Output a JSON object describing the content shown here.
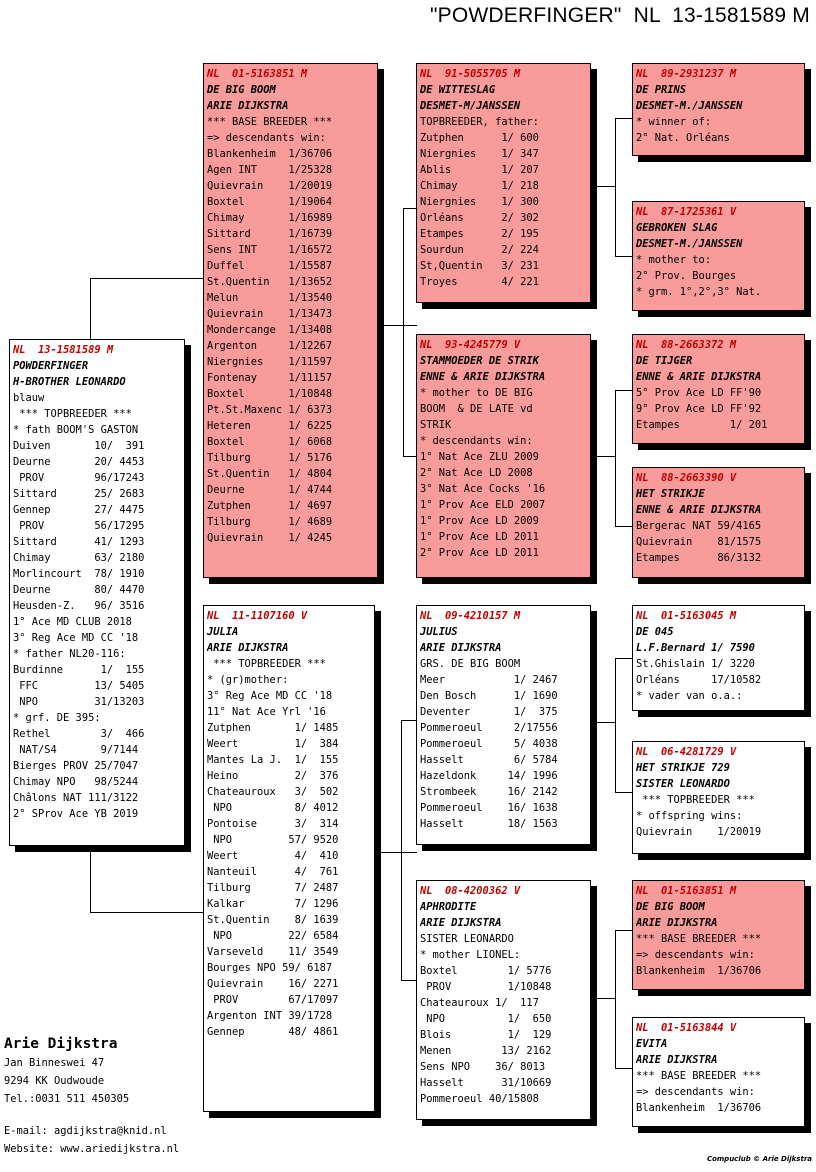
{
  "title": "\"POWDERFINGER\"  NL  13-1581589 M",
  "boxes": {
    "main": [
      "NL  13-1581589 M",
      "POWDERFINGER",
      "H-BROTHER LEONARDO",
      "blauw",
      " *** TOPBREEDER ***",
      "* fath BOOM'S GASTON",
      "Duiven       10/  391",
      "Deurne       20/ 4453",
      " PROV        96/17243",
      "Sittard      25/ 2683",
      "Gennep       27/ 4475",
      " PROV        56/17295",
      "Sittard      41/ 1293",
      "Chimay       63/ 2180",
      "Morlincourt  78/ 1910",
      "Deurne       80/ 4470",
      "Heusden-Z.   96/ 3516",
      "1° Ace MD CLUB 2018",
      "3° Reg Ace MD CC '18",
      "* father NL20-116:",
      "Burdinne      1/  155",
      " FFC         13/ 5405",
      " NPO         31/13203",
      "* grf. DE 395:",
      "Rethel        3/  466",
      " NAT/S4       9/7144",
      "Bierges PROV 25/7047",
      "Chimay NPO   98/5244",
      "Châlons NAT 111/3122",
      "2° SProv Ace YB 2019"
    ],
    "f": [
      "NL  01-5163851 M",
      "DE BIG BOOM",
      "ARIE DIJKSTRA",
      "*** BASE BREEDER ***",
      "=> descendants win:",
      "Blankenheim  1/36706",
      "Agen INT     1/25328",
      "Quievrain    1/20019",
      "Boxtel       1/19064",
      "Chimay       1/16989",
      "Sittard      1/16739",
      "Sens INT     1/16572",
      "Duffel       1/15587",
      "St.Quentin   1/13652",
      "Melun        1/13540",
      "Quievrain    1/13473",
      "Mondercange  1/13408",
      "Argenton     1/12267",
      "Niergnies    1/11597",
      "Fontenay     1/11157",
      "Boxtel       1/10848",
      "Pt.St.Maxenc 1/ 6373",
      "Heteren      1/ 6225",
      "Boxtel       1/ 6068",
      "Tilburg      1/ 5176",
      "St.Quentin   1/ 4804",
      "Deurne       1/ 4744",
      "Zutphen      1/ 4697",
      "Tilburg      1/ 4689",
      "Quievrain    1/ 4245"
    ],
    "m": [
      "NL  11-1107160 V",
      "JULIA",
      "ARIE DIJKSTRA",
      " *** TOPBREEDER ***",
      "* (gr)mother:",
      "3° Reg Ace MD CC '18",
      "11° Nat Ace Yrl '16",
      "Zutphen       1/ 1485",
      "Weert         1/  384",
      "Mantes La J.  1/  155",
      "Heino         2/  376",
      "Chateauroux   3/  502",
      " NPO          8/ 4012",
      "Pontoise      3/  314",
      " NPO         57/ 9520",
      "Weert         4/  410",
      "Nanteuil      4/  761",
      "Tilburg       7/ 2487",
      "Kalkar        7/ 1296",
      "St.Quentin    8/ 1639",
      " NPO         22/ 6584",
      "Varseveld    11/ 3549",
      "Bourges NPO 59/ 6187",
      "Quievrain    16/ 2271",
      " PROV        67/17097",
      "Argenton INT 39/1728",
      "Gennep       48/ 4861"
    ],
    "ff": [
      "NL  91-5055705 M",
      "DE WITTESLAG",
      "DESMET-M/JANSSEN",
      "TOPBREEDER, father:",
      "Zutphen      1/ 600",
      "Niergnies    1/ 347",
      "Ablis        1/ 207",
      "Chimay       1/ 218",
      "Niergnies    1/ 300",
      "Orléans      2/ 302",
      "Etampes      2/ 195",
      "Sourdun      2/ 224",
      "St,Quentin   3/ 231",
      "Troyes       4/ 221"
    ],
    "fm": [
      "NL  93-4245779 V",
      "STAMMOEDER DE STRIK",
      "ENNE & ARIE DIJKSTRA",
      "* mother to DE BIG",
      "BOOM  & DE LATE vd",
      "STRIK",
      "* descendants win:",
      "1° Nat Ace ZLU 2009",
      "2° Nat Ace LD 2008",
      "3° Nat Ace Cocks '16",
      "1° Prov Ace ELD 2007",
      "1° Prov Ace LD 2009",
      "1° Prov Ace LD 2011",
      "2° Prov Ace LD 2011"
    ],
    "mf": [
      "NL  09-4210157 M",
      "JULIUS",
      "ARIE DIJKSTRA",
      "GRS. DE BIG BOOM",
      "Meer           1/ 2467",
      "Den Bosch      1/ 1690",
      "Deventer       1/  375",
      "Pommeroeul     2/17556",
      "Pommeroeul     5/ 4038",
      "Hasselt        6/ 5784",
      "Hazeldonk     14/ 1996",
      "Strombeek     16/ 2142",
      "Pommeroeul    16/ 1638",
      "Hasselt       18/ 1563"
    ],
    "mm": [
      "NL  08-4200362 V",
      "APHRODITE",
      "ARIE DIJKSTRA",
      "SISTER LEONARDO",
      "* mother LIONEL:",
      "Boxtel        1/ 5776",
      " PROV         1/10848",
      "Chateauroux 1/  117",
      " NPO          1/  650",
      "Blois         1/  129",
      "Menen        13/ 2162",
      "Sens NPO    36/ 8013",
      "Hasselt      31/10669",
      "Pommeroeul 40/15808"
    ],
    "fff": [
      "NL  89-2931237 M",
      "DE PRINS",
      "DESMET-M./JANSSEN",
      "* winner of:",
      "2° Nat. Orléans"
    ],
    "ffm": [
      "NL  87-1725361 V",
      "GEBROKEN SLAG",
      "DESMET-M./JANSSEN",
      "* mother to:",
      "2° Prov. Bourges",
      "* grm. 1°,2°,3° Nat."
    ],
    "fmf": [
      "NL  88-2663372 M",
      "DE TIJGER",
      "ENNE & ARIE DIJKSTRA",
      "5° Prov Ace LD FF'90",
      "9° Prov Ace LD FF'92",
      "Etampes        1/ 201"
    ],
    "fmm": [
      "NL  88-2663390 V",
      "HET STRIKJE",
      "ENNE & ARIE DIJKSTRA",
      "Bergerac NAT 59/4165",
      "Quievrain    81/1575",
      "Etampes      86/3132"
    ],
    "mff": [
      "NL  01-5163045 M",
      "DE 045",
      "L.F.Bernard 1/ 7590",
      "St.Ghislain 1/ 3220",
      "Orléans     17/10582",
      "* vader van o.a.:"
    ],
    "mfm": [
      "NL  06-4281729 V",
      "HET STRIKJE 729",
      "SISTER LEONARDO",
      " *** TOPBREEDER ***",
      "* offspring wins:",
      "Quievrain    1/20019"
    ],
    "mmf": [
      "NL  01-5163851 M",
      "DE BIG BOOM",
      "ARIE DIJKSTRA",
      "*** BASE BREEDER ***",
      "=> descendants win:",
      "Blankenheim  1/36706"
    ],
    "mmm": [
      "NL  01-5163844 V",
      "EVITA",
      "ARIE DIJKSTRA",
      "*** BASE BREEDER ***",
      "=> descendants win:",
      "Blankenheim  1/36706"
    ]
  },
  "owner": {
    "name": "Arie Dijkstra",
    "street": "Jan Binneswei 47",
    "city": "9294 KK  Oudwoude",
    "tel": "Tel.:0031 511 450305",
    "email": "E-mail: agdijkstra@knid.nl",
    "website": "Website: www.ariedijkstra.nl"
  },
  "credit": "Compuclub © Arie Dijkstra",
  "colors": {
    "pink": "#f79b9b",
    "ring": "#c00000"
  }
}
